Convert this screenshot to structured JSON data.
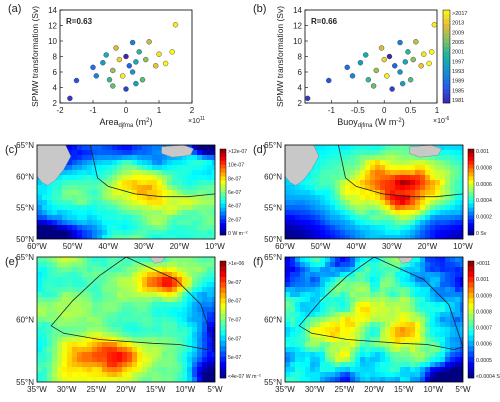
{
  "chart_data": [
    {
      "panel": "(a)",
      "type": "scatter",
      "r_label": "R=0.63",
      "xlabel": "Area",
      "xlabel_sub": "djfma",
      "xlabel_unit": " (m",
      "xlabel_sup": "2",
      "xlabel_close": ")",
      "x_exponent_base": "×10",
      "x_exponent": "11",
      "ylabel": "SPMW transformation (Sv)",
      "xlim": [
        -2,
        2
      ],
      "ylim": [
        2,
        14
      ],
      "xticks": [
        "-2",
        "-1",
        "0",
        "1",
        "2"
      ],
      "yticks": [
        "2",
        "4",
        "6",
        "8",
        "10",
        "12",
        "14"
      ],
      "points": [
        [
          -1.7,
          2.6,
          1983
        ],
        [
          -1.5,
          4.9,
          1986
        ],
        [
          -1.0,
          6.6,
          1989
        ],
        [
          -0.9,
          5.5,
          1992
        ],
        [
          -0.7,
          7.2,
          1995
        ],
        [
          -0.6,
          8.2,
          1998
        ],
        [
          -0.5,
          5.0,
          2001
        ],
        [
          -0.4,
          4.2,
          2004
        ],
        [
          -0.4,
          6.2,
          2007
        ],
        [
          -0.3,
          9.1,
          2010
        ],
        [
          -0.2,
          7.6,
          2013
        ],
        [
          -0.1,
          5.5,
          2016
        ],
        [
          0.0,
          8.0,
          1981
        ],
        [
          0.0,
          3.8,
          1984
        ],
        [
          0.1,
          6.8,
          1988
        ],
        [
          0.2,
          9.8,
          1991
        ],
        [
          0.2,
          6.0,
          1994
        ],
        [
          0.3,
          7.3,
          1997
        ],
        [
          0.4,
          8.6,
          2000
        ],
        [
          0.5,
          5.0,
          2003
        ],
        [
          0.6,
          7.6,
          2006
        ],
        [
          0.7,
          9.9,
          2009
        ],
        [
          0.9,
          6.8,
          2012
        ],
        [
          1.0,
          8.3,
          2015
        ],
        [
          1.2,
          7.1,
          2017
        ],
        [
          1.4,
          8.6,
          2017
        ],
        [
          1.5,
          12.1,
          2016
        ],
        [
          0.3,
          4.5,
          1996
        ]
      ]
    },
    {
      "panel": "(b)",
      "type": "scatter",
      "r_label": "R=0.66",
      "xlabel": "Buoy",
      "xlabel_sub": "djfma",
      "xlabel_unit": " (W m",
      "xlabel_sup": "-2",
      "xlabel_close": ")",
      "x_exponent_base": "×10",
      "x_exponent": "-6",
      "ylabel": "SPMW transformation (Sv)",
      "xlim": [
        -1.5,
        1.0
      ],
      "ylim": [
        2,
        14
      ],
      "xticks": [
        "-1",
        "-0.5",
        "0",
        "0.5",
        "1"
      ],
      "yticks": [
        "2",
        "4",
        "6",
        "8",
        "10",
        "12",
        "14"
      ],
      "colorbar_labels": [
        ">2017",
        "2013",
        "2009",
        "2005",
        "2001",
        "1997",
        "1993",
        "1989",
        "1985",
        "1981"
      ],
      "points": [
        [
          -1.45,
          2.6,
          1983
        ],
        [
          -1.05,
          4.9,
          1986
        ],
        [
          -0.7,
          6.6,
          1989
        ],
        [
          -0.6,
          5.5,
          1992
        ],
        [
          -0.45,
          7.2,
          1995
        ],
        [
          -0.35,
          8.2,
          1998
        ],
        [
          -0.3,
          5.0,
          2001
        ],
        [
          -0.2,
          4.2,
          2004
        ],
        [
          -0.15,
          6.2,
          2007
        ],
        [
          -0.05,
          9.1,
          2010
        ],
        [
          0.0,
          7.6,
          2013
        ],
        [
          0.05,
          5.5,
          2016
        ],
        [
          0.1,
          8.0,
          1981
        ],
        [
          0.15,
          3.8,
          1984
        ],
        [
          0.2,
          6.8,
          1988
        ],
        [
          0.3,
          9.8,
          1991
        ],
        [
          0.3,
          6.0,
          1994
        ],
        [
          0.4,
          7.3,
          1997
        ],
        [
          0.45,
          8.6,
          2000
        ],
        [
          0.5,
          5.0,
          2003
        ],
        [
          0.55,
          7.6,
          2006
        ],
        [
          0.6,
          9.9,
          2009
        ],
        [
          0.7,
          6.8,
          2012
        ],
        [
          0.75,
          8.3,
          2015
        ],
        [
          0.85,
          7.1,
          2017
        ],
        [
          0.9,
          8.6,
          2017
        ],
        [
          0.95,
          12.1,
          2016
        ],
        [
          0.35,
          4.5,
          1996
        ]
      ]
    },
    {
      "panel": "(c)",
      "type": "heatmap",
      "lat_labels": [
        "65°N",
        "60°N",
        "55°N",
        "50°N"
      ],
      "lon_labels": [
        "60°W",
        "50°W",
        "40°W",
        "30°W",
        "20°W",
        "10°W"
      ],
      "colorbar_labels": [
        ">12e-07",
        "10e-07",
        "8e-07",
        "6e-07",
        "4e-07",
        "2e-07",
        "0 W m⁻²"
      ]
    },
    {
      "panel": "(d)",
      "type": "heatmap",
      "lat_labels": [
        "65°N",
        "60°N",
        "55°N",
        "50°N"
      ],
      "lon_labels": [
        "60°W",
        "50°W",
        "40°W",
        "30°W",
        "20°W",
        "10°W"
      ],
      "colorbar_labels": [
        "0.001",
        "0.0008",
        "0.0006",
        "0.0004",
        "0.0002",
        "0 Sv"
      ]
    },
    {
      "panel": "(e)",
      "type": "heatmap",
      "lat_labels": [
        "65°N",
        "60°N",
        "55°N"
      ],
      "lon_labels": [
        "35°W",
        "30°W",
        "25°W",
        "20°W",
        "15°W",
        "10°W",
        "5°W"
      ],
      "colorbar_labels": [
        ">1e-06",
        "9e-07",
        "8e-07",
        "7e-07",
        "6e-07",
        "5e-07",
        "<4e-07 W m⁻²"
      ]
    },
    {
      "panel": "(f)",
      "type": "heatmap",
      "lat_labels": [
        "65°N",
        "60°N",
        "55°N"
      ],
      "lon_labels": [
        "35°W",
        "30°W",
        "25°W",
        "20°W",
        "15°W",
        "10°W",
        "5°W"
      ],
      "colorbar_labels": [
        ">0011",
        "0.001",
        "0.0009",
        "0.0008",
        "0.0007",
        "0.0006",
        "0.0005",
        "<0.0004 Sv"
      ]
    }
  ]
}
